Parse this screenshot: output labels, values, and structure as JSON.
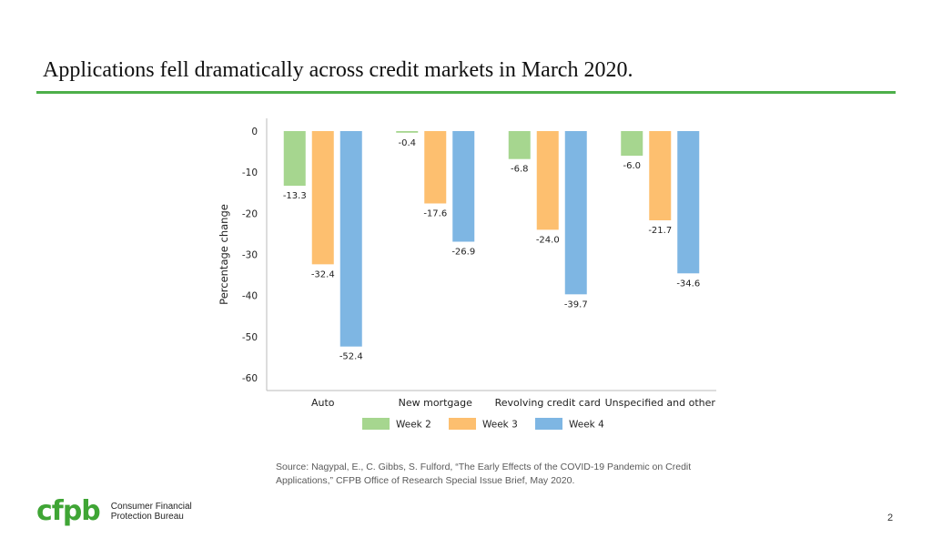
{
  "slide": {
    "title": "Applications fell dramatically across credit markets in March 2020.",
    "source": "Source: Nagypal, E., C. Gibbs, S. Fulford, “The Early Effects of the COVID-19 Pandemic on Credit Applications,” CFPB Office of Research Special Issue Brief, May 2020.",
    "logo_mark": "cfpb",
    "logo_line1": "Consumer Financial",
    "logo_line2": "Protection Bureau",
    "page_number": "2",
    "accent_color": "#4daf4a"
  },
  "chart_data": {
    "type": "bar",
    "title": "",
    "xlabel": "",
    "ylabel": "Percentage change",
    "categories": [
      "Auto",
      "New mortgage",
      "Revolving credit card",
      "Unspecified and other"
    ],
    "series": [
      {
        "name": "Week 2",
        "color": "#a6d68f",
        "values": [
          -13.3,
          -0.4,
          -6.8,
          -6.0
        ]
      },
      {
        "name": "Week 3",
        "color": "#fdbf6f",
        "values": [
          -32.4,
          -17.6,
          -24.0,
          -21.7
        ]
      },
      {
        "name": "Week 4",
        "color": "#7eb6e3",
        "values": [
          -52.4,
          -26.9,
          -39.7,
          -34.6
        ]
      }
    ],
    "ylim": [
      -60,
      0
    ],
    "yticks": [
      0,
      -10,
      -20,
      -30,
      -40,
      -50,
      -60
    ],
    "grid": false,
    "legend_position": "bottom-center"
  }
}
